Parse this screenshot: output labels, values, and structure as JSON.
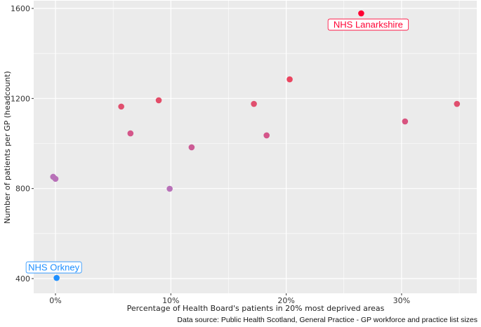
{
  "chart_data": {
    "type": "scatter",
    "xlabel": "Percentage of Health Board's patients in 20% most deprived areas",
    "ylabel": "Number of patients per GP (headcount)",
    "caption": "Data source: Public Health Scotland, General Practice - GP workforce and practice list sizes",
    "xlim": [
      -2,
      36.5
    ],
    "ylim": [
      335,
      1630
    ],
    "x_ticks": [
      {
        "value": 0,
        "label": "0%"
      },
      {
        "value": 10,
        "label": "10%"
      },
      {
        "value": 20,
        "label": "20%"
      },
      {
        "value": 30,
        "label": "30%"
      }
    ],
    "y_ticks": [
      {
        "value": 400,
        "label": "400"
      },
      {
        "value": 800,
        "label": "800"
      },
      {
        "value": 1200,
        "label": "1200"
      },
      {
        "value": 1600,
        "label": "1600"
      }
    ],
    "grid": true,
    "panel_background": "#EBEBEB",
    "points": [
      {
        "x": 0.1,
        "y": 403,
        "color": "#1E8FFF",
        "label": "NHS Orkney"
      },
      {
        "x": -0.2,
        "y": 852,
        "color": "#B871B8"
      },
      {
        "x": 0.0,
        "y": 843,
        "color": "#B871B8"
      },
      {
        "x": 5.7,
        "y": 1164,
        "color": "#E04F6E"
      },
      {
        "x": 6.5,
        "y": 1045,
        "color": "#D4568A"
      },
      {
        "x": 8.95,
        "y": 1192,
        "color": "#E34C68"
      },
      {
        "x": 9.9,
        "y": 799,
        "color": "#B871B8"
      },
      {
        "x": 11.8,
        "y": 983,
        "color": "#CC5B95"
      },
      {
        "x": 17.2,
        "y": 1176,
        "color": "#E04F6E"
      },
      {
        "x": 18.3,
        "y": 1036,
        "color": "#D4568A"
      },
      {
        "x": 20.3,
        "y": 1285,
        "color": "#EA4560"
      },
      {
        "x": 26.5,
        "y": 1578,
        "color": "#FF0033",
        "label": "NHS Lanarkshire"
      },
      {
        "x": 30.3,
        "y": 1098,
        "color": "#D8537F"
      },
      {
        "x": 34.8,
        "y": 1176,
        "color": "#E04F6E"
      }
    ]
  }
}
